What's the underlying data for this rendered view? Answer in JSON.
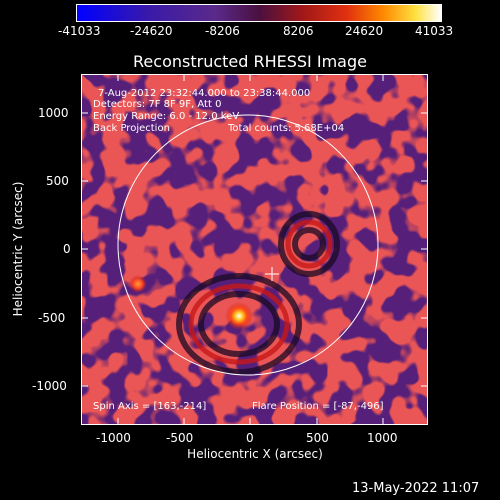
{
  "colorbar": {
    "ticks": [
      "-41033",
      "-24620",
      "-8206",
      "8206",
      "24620",
      "41033"
    ]
  },
  "plot": {
    "title": "Reconstructed RHESSI Image",
    "xlabel": "Heliocentric X (arcsec)",
    "ylabel": "Heliocentric Y (arcsec)",
    "xticks": [
      "-1000",
      "-500",
      "0",
      "500",
      "1000"
    ],
    "yticks": [
      "1000",
      "500",
      "0",
      "-500",
      "-1000"
    ]
  },
  "annotations": {
    "time_range": "7-Aug-2012 23:32:44.000 to 23:38:44.000",
    "detectors": "Detectors: 7F 8F 9F, Att 0",
    "energy": "Energy Range: 6.0 - 12.0 keV",
    "method": "Back Projection",
    "counts": "Total counts: 5.68E+04",
    "spin_axis": "Spin Axis = [163,-214]",
    "flare_position": "Flare Position = [-87,-496]"
  },
  "footer": {
    "date": "13-May-2022 11:07"
  },
  "colors": {
    "background": "#000000",
    "colormap_low": "#0000ff",
    "colormap_mid": "#5a2a8a",
    "colormap_red": "#d01818",
    "colormap_high": "#ffffff"
  }
}
